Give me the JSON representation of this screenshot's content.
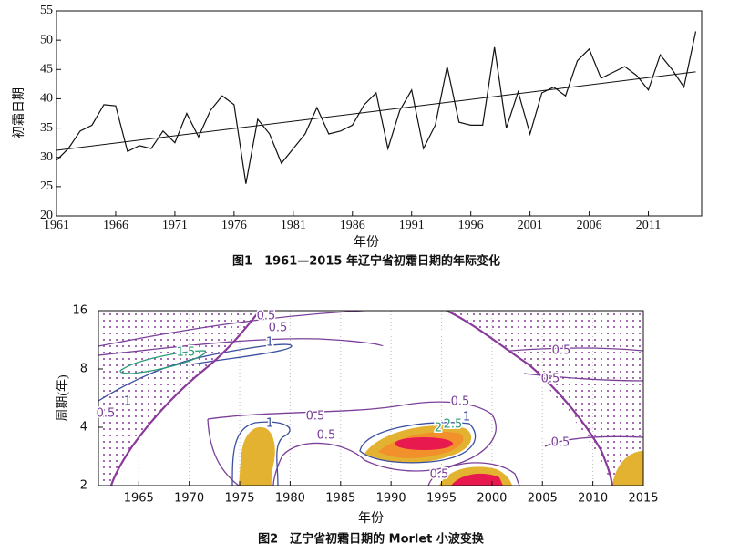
{
  "chart_data": [
    {
      "type": "line",
      "title": "图1　1961—2015 年辽宁省初霜日期的年际变化",
      "xlabel": "年份",
      "ylabel": "初霜日期",
      "x": [
        1961,
        1962,
        1963,
        1964,
        1965,
        1966,
        1967,
        1968,
        1969,
        1970,
        1971,
        1972,
        1973,
        1974,
        1975,
        1976,
        1977,
        1978,
        1979,
        1980,
        1981,
        1982,
        1983,
        1984,
        1985,
        1986,
        1987,
        1988,
        1989,
        1990,
        1991,
        1992,
        1993,
        1994,
        1995,
        1996,
        1997,
        1998,
        1999,
        2000,
        2001,
        2002,
        2003,
        2004,
        2005,
        2006,
        2007,
        2008,
        2009,
        2010,
        2011,
        2012,
        2013,
        2014,
        2015
      ],
      "values": [
        29.5,
        31.5,
        34.5,
        35.5,
        39,
        38.8,
        31,
        32,
        31.5,
        34.5,
        32.5,
        37.5,
        33.5,
        38,
        40.5,
        39,
        25.5,
        36.5,
        34,
        29,
        31.5,
        34,
        38.5,
        34,
        34.5,
        35.5,
        39,
        41,
        31.5,
        38,
        41.5,
        31.5,
        35.5,
        45.5,
        36,
        35.5,
        35.5,
        48.8,
        35,
        41.2,
        34,
        41,
        42,
        40.5,
        46.5,
        48.5,
        43.5,
        44.5,
        45.5,
        44,
        41.5,
        47.5,
        45,
        42,
        51.5
      ],
      "color": "#111111",
      "trend": {
        "x": [
          1961,
          2015
        ],
        "values": [
          31.2,
          44.6
        ]
      },
      "xlim": [
        1961,
        2015.5
      ],
      "xticks": [
        1961,
        1966,
        1971,
        1976,
        1981,
        1986,
        1991,
        1996,
        2001,
        2006,
        2011
      ],
      "ylim": [
        20,
        55
      ],
      "yticks": [
        20,
        25,
        30,
        35,
        40,
        45,
        50,
        55
      ]
    },
    {
      "type": "contour",
      "title": "图2　辽宁省初霜日期的 Morlet 小波变换",
      "xlabel": "年份",
      "ylabel": "周期(年)",
      "xlim": [
        1961,
        2015
      ],
      "xticks": [
        1965,
        1970,
        1975,
        1980,
        1985,
        1990,
        1995,
        2000,
        2005,
        2010,
        2015
      ],
      "ylim": [
        2,
        16
      ],
      "yticks": [
        2,
        4,
        8,
        16
      ],
      "ylog": true,
      "grid": true,
      "contour_labels": [
        0.5,
        0.5,
        1,
        1.5,
        1,
        0.5,
        0.5,
        1,
        0.5,
        2,
        2.5,
        1,
        0.5,
        0.5,
        0.5,
        0.5,
        0.5
      ]
    }
  ]
}
